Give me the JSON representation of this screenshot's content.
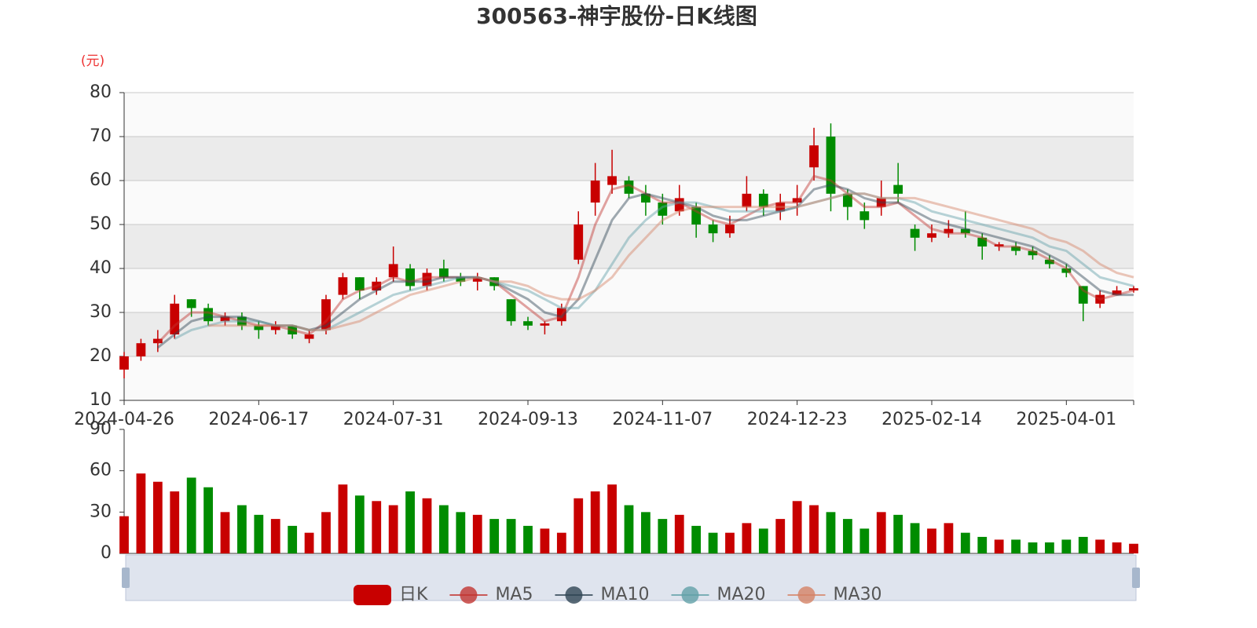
{
  "chart_data": {
    "type": "candlestick",
    "title": "300563-神宇股份-日K线图",
    "y_unit": "(元)",
    "categories": [
      "2024-04-26",
      null,
      null,
      null,
      null,
      null,
      null,
      null,
      "2024-06-17",
      null,
      null,
      null,
      null,
      null,
      null,
      null,
      "2024-07-31",
      null,
      null,
      null,
      null,
      null,
      null,
      null,
      "2024-09-13",
      null,
      null,
      null,
      null,
      null,
      null,
      null,
      "2024-11-07",
      null,
      null,
      null,
      null,
      null,
      null,
      null,
      "2024-12-23",
      null,
      null,
      null,
      null,
      null,
      null,
      null,
      "2025-02-14",
      null,
      null,
      null,
      null,
      null,
      null,
      null,
      "2025-04-01",
      null,
      null,
      null,
      null
    ],
    "candles": {
      "name": "日K",
      "values": [
        [
          17,
          20,
          15,
          21
        ],
        [
          20,
          23,
          19,
          24
        ],
        [
          23,
          24,
          21,
          26
        ],
        [
          25,
          32,
          24,
          34
        ],
        [
          33,
          31,
          29,
          33
        ],
        [
          31,
          28,
          27,
          32
        ],
        [
          28,
          29,
          27,
          30
        ],
        [
          29,
          27,
          26,
          30
        ],
        [
          27,
          26,
          24,
          28
        ],
        [
          26,
          27,
          25,
          28
        ],
        [
          27,
          25,
          24,
          27
        ],
        [
          24,
          25,
          23,
          26
        ],
        [
          26,
          33,
          25,
          34
        ],
        [
          34,
          38,
          33,
          39
        ],
        [
          38,
          35,
          33,
          38
        ],
        [
          35,
          37,
          34,
          38
        ],
        [
          38,
          41,
          37,
          45
        ],
        [
          40,
          36,
          35,
          41
        ],
        [
          36,
          39,
          35,
          40
        ],
        [
          40,
          38,
          37,
          42
        ],
        [
          38,
          37,
          36,
          39
        ],
        [
          37,
          38,
          35,
          39
        ],
        [
          38,
          36,
          35,
          38
        ],
        [
          33,
          28,
          27,
          33
        ],
        [
          28,
          27,
          26,
          29
        ],
        [
          27,
          27.5,
          25,
          28
        ],
        [
          28,
          31,
          27,
          32
        ],
        [
          42,
          50,
          41,
          53
        ],
        [
          55,
          60,
          52,
          64
        ],
        [
          59,
          61,
          57,
          67
        ],
        [
          60,
          57,
          56,
          61
        ],
        [
          57,
          55,
          52,
          59
        ],
        [
          55,
          52,
          50,
          57
        ],
        [
          53,
          56,
          52,
          59
        ],
        [
          54,
          50,
          47,
          55
        ],
        [
          50,
          48,
          46,
          51
        ],
        [
          48,
          50,
          47,
          52
        ],
        [
          54,
          57,
          53,
          61
        ],
        [
          57,
          54,
          52,
          58
        ],
        [
          53,
          55,
          51,
          57
        ],
        [
          55,
          56,
          52,
          59
        ],
        [
          63,
          68,
          60,
          72
        ],
        [
          70,
          57,
          53,
          73
        ],
        [
          57,
          54,
          51,
          58
        ],
        [
          53,
          51,
          49,
          55
        ],
        [
          54,
          56,
          52,
          60
        ],
        [
          59,
          57,
          55,
          64
        ],
        [
          49,
          47,
          44,
          50
        ],
        [
          47,
          48,
          46,
          50
        ],
        [
          48,
          49,
          47,
          51
        ],
        [
          49,
          48,
          47,
          53
        ],
        [
          47,
          45,
          42,
          48
        ],
        [
          45,
          45.5,
          44,
          46
        ],
        [
          45,
          44,
          43,
          46
        ],
        [
          44,
          43,
          42,
          45
        ],
        [
          42,
          41,
          40,
          43
        ],
        [
          40,
          39,
          38,
          41
        ],
        [
          36,
          32,
          28,
          36
        ],
        [
          32,
          34,
          31,
          35
        ],
        [
          34,
          35,
          34,
          36
        ],
        [
          35,
          35.5,
          34.5,
          36
        ]
      ]
    },
    "ma": [
      {
        "name": "MA5",
        "color": "#c23531",
        "values": [
          null,
          null,
          23,
          27,
          30,
          30,
          29,
          28,
          27,
          27,
          26,
          25,
          28,
          33,
          35,
          36,
          38,
          37,
          38,
          38,
          38,
          38,
          37,
          34,
          31,
          28,
          29,
          38,
          50,
          58,
          59,
          57,
          55,
          55,
          53,
          51,
          50,
          52,
          54,
          55,
          55,
          61,
          60,
          57,
          54,
          54,
          55,
          52,
          49,
          48,
          48,
          47,
          45,
          45,
          44,
          42,
          40,
          35,
          33,
          34,
          35
        ]
      },
      {
        "name": "MA10",
        "color": "#2f4554",
        "values": [
          null,
          null,
          22,
          25,
          28,
          29,
          29,
          29,
          28,
          27,
          27,
          26,
          27,
          30,
          33,
          35,
          37,
          37,
          37,
          38,
          38,
          38,
          37,
          35,
          33,
          30,
          29,
          33,
          42,
          51,
          56,
          57,
          56,
          55,
          54,
          52,
          51,
          51,
          52,
          53,
          54,
          58,
          59,
          58,
          56,
          55,
          55,
          53,
          51,
          50,
          49,
          48,
          47,
          46,
          45,
          43,
          41,
          38,
          35,
          34,
          34
        ]
      },
      {
        "name": "MA20",
        "color": "#61a0a8",
        "values": [
          null,
          null,
          null,
          24,
          26,
          27,
          28,
          28,
          28,
          27,
          27,
          26,
          26,
          28,
          30,
          32,
          34,
          35,
          36,
          37,
          38,
          38,
          37,
          36,
          35,
          33,
          31,
          31,
          35,
          41,
          47,
          51,
          54,
          55,
          55,
          54,
          53,
          53,
          53,
          53,
          54,
          55,
          56,
          57,
          57,
          56,
          56,
          55,
          53,
          52,
          51,
          50,
          49,
          48,
          47,
          45,
          44,
          41,
          38,
          37,
          36
        ]
      },
      {
        "name": "MA30",
        "color": "#d48265",
        "values": [
          null,
          null,
          null,
          null,
          null,
          27,
          27,
          27,
          27,
          27,
          27,
          26,
          26,
          27,
          28,
          30,
          32,
          34,
          35,
          36,
          37,
          38,
          37,
          37,
          36,
          34,
          33,
          33,
          35,
          38,
          43,
          47,
          51,
          53,
          54,
          54,
          54,
          54,
          54,
          54,
          54,
          55,
          56,
          57,
          57,
          56,
          56,
          56,
          55,
          54,
          53,
          52,
          51,
          50,
          49,
          47,
          46,
          44,
          41,
          39,
          38
        ]
      }
    ],
    "volume": [
      27,
      58,
      52,
      45,
      55,
      48,
      30,
      35,
      28,
      25,
      20,
      15,
      30,
      50,
      42,
      38,
      35,
      45,
      40,
      35,
      30,
      28,
      25,
      25,
      20,
      18,
      15,
      40,
      45,
      50,
      35,
      30,
      25,
      28,
      20,
      15,
      15,
      22,
      18,
      25,
      38,
      35,
      30,
      25,
      18,
      30,
      28,
      22,
      18,
      22,
      15,
      12,
      10,
      10,
      8,
      8,
      10,
      12,
      10,
      8,
      7
    ],
    "ylim": [
      10,
      80
    ],
    "yticks": [
      10,
      20,
      30,
      40,
      50,
      60,
      70,
      80
    ],
    "volume_ylim": [
      0,
      90
    ],
    "volume_yticks": [
      0,
      30,
      60,
      90
    ],
    "up_color": "#c80000",
    "down_color": "#008c00",
    "split_area": true,
    "grid": true
  }
}
